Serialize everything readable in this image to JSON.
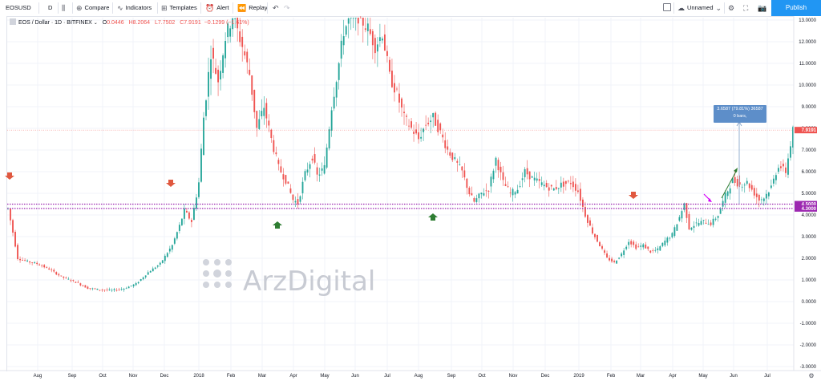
{
  "toolbar": {
    "symbol": "EOSUSD",
    "interval": "D",
    "compare": "Compare",
    "indicators": "Indicators",
    "templates": "Templates",
    "alert": "Alert",
    "replay": "Replay",
    "layout_name": "Unnamed",
    "publish": "Publish"
  },
  "legend": {
    "title": "EOS / Dollar · 1D · BITFINEX",
    "open": "0.0446",
    "high": "H8.2064",
    "low": "L7.7502",
    "close": "C7.9191",
    "change": "−0.1299 (−1.61%)"
  },
  "watermark": "ArzDigital",
  "measure": {
    "line1": "3.6587 (79.81%) 36587",
    "line2": "0 bars,"
  },
  "colors": {
    "up": "#26a69a",
    "down": "#ef5350",
    "level": "#9c27b0",
    "current": "#ef5350",
    "accent": "#2196f3"
  },
  "chart_data": {
    "type": "candlestick",
    "x_tick_labels": [
      "Aug",
      "Sep",
      "Oct",
      "Nov",
      "Dec",
      "2018",
      "Feb",
      "Mar",
      "Apr",
      "May",
      "Jun",
      "Jul",
      "Aug",
      "Sep",
      "Oct",
      "Nov",
      "Dec",
      "2019",
      "Feb",
      "Mar",
      "Apr",
      "May",
      "Jun",
      "Jul"
    ],
    "y_ticks": [
      "13.0000",
      "12.0000",
      "11.0000",
      "10.0000",
      "9.0000",
      "8.0000",
      "7.0000",
      "6.0000",
      "5.0000",
      "4.0000",
      "3.0000",
      "2.0000",
      "1.0000",
      "0.0000",
      "-1.0000",
      "-2.0000",
      "-3.0000"
    ],
    "ylim": [
      -3.4,
      13.2
    ],
    "current_price": "7.9191",
    "support_levels": [
      "4.5000",
      "4.3000"
    ],
    "price_path": [
      [
        0,
        4.3
      ],
      [
        2,
        3.2
      ],
      [
        4,
        2.0
      ],
      [
        8,
        1.85
      ],
      [
        12,
        1.75
      ],
      [
        17,
        1.5
      ],
      [
        22,
        1.15
      ],
      [
        28,
        0.9
      ],
      [
        33,
        0.62
      ],
      [
        38,
        0.55
      ],
      [
        43,
        0.52
      ],
      [
        48,
        0.6
      ],
      [
        53,
        0.82
      ],
      [
        58,
        1.35
      ],
      [
        63,
        1.75
      ],
      [
        68,
        2.6
      ],
      [
        71,
        3.5
      ],
      [
        73,
        4.2
      ],
      [
        76,
        3.7
      ],
      [
        79,
        5.5
      ],
      [
        81,
        8.5
      ],
      [
        84,
        11.5
      ],
      [
        87,
        10.2
      ],
      [
        90,
        12.2
      ],
      [
        93,
        13.2
      ],
      [
        95,
        12.5
      ],
      [
        97,
        11.8
      ],
      [
        100,
        10.5
      ],
      [
        103,
        8.0
      ],
      [
        106,
        9.0
      ],
      [
        109,
        7.5
      ],
      [
        112,
        6.2
      ],
      [
        115,
        5.6
      ],
      [
        118,
        4.7
      ],
      [
        120,
        4.55
      ],
      [
        123,
        5.9
      ],
      [
        126,
        6.7
      ],
      [
        128,
        5.8
      ],
      [
        131,
        6.2
      ],
      [
        134,
        9.0
      ],
      [
        137,
        11.0
      ],
      [
        139,
        12.5
      ],
      [
        142,
        13.2
      ],
      [
        145,
        13.2
      ],
      [
        149,
        12.6
      ],
      [
        152,
        11.8
      ],
      [
        155,
        12.4
      ],
      [
        158,
        10.4
      ],
      [
        161,
        9.6
      ],
      [
        164,
        8.5
      ],
      [
        167,
        8.0
      ],
      [
        170,
        7.5
      ],
      [
        173,
        8.2
      ],
      [
        176,
        8.5
      ],
      [
        179,
        7.8
      ],
      [
        182,
        7.0
      ],
      [
        185,
        6.5
      ],
      [
        188,
        6.0
      ],
      [
        191,
        5.0
      ],
      [
        193,
        4.6
      ],
      [
        196,
        5.0
      ],
      [
        199,
        5.2
      ],
      [
        202,
        6.6
      ],
      [
        205,
        5.5
      ],
      [
        208,
        5.0
      ],
      [
        211,
        5.2
      ],
      [
        214,
        6.0
      ],
      [
        217,
        5.7
      ],
      [
        220,
        5.5
      ],
      [
        223,
        5.3
      ],
      [
        226,
        5.2
      ],
      [
        229,
        5.4
      ],
      [
        233,
        5.5
      ],
      [
        236,
        5.1
      ],
      [
        239,
        4.0
      ],
      [
        242,
        3.2
      ],
      [
        245,
        2.6
      ],
      [
        248,
        2.0
      ],
      [
        251,
        1.8
      ],
      [
        254,
        2.2
      ],
      [
        257,
        2.8
      ],
      [
        260,
        2.5
      ],
      [
        263,
        2.6
      ],
      [
        266,
        2.3
      ],
      [
        269,
        2.4
      ],
      [
        272,
        2.8
      ],
      [
        275,
        3.1
      ],
      [
        278,
        3.9
      ],
      [
        280,
        4.5
      ],
      [
        282,
        3.4
      ],
      [
        285,
        3.6
      ],
      [
        288,
        3.7
      ],
      [
        291,
        3.6
      ],
      [
        294,
        4.0
      ],
      [
        297,
        4.9
      ],
      [
        300,
        5.6
      ],
      [
        303,
        5.4
      ],
      [
        306,
        5.5
      ],
      [
        309,
        5.0
      ],
      [
        311,
        4.7
      ],
      [
        313,
        4.8
      ],
      [
        316,
        5.3
      ],
      [
        319,
        6.3
      ],
      [
        322,
        6.0
      ],
      [
        325,
        7.9
      ]
    ]
  }
}
